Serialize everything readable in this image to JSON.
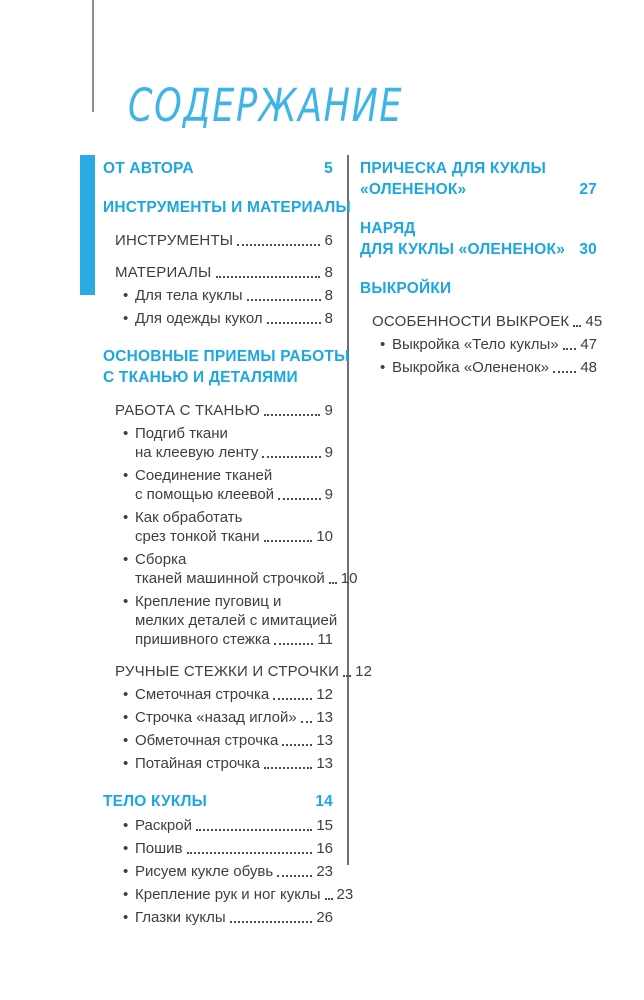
{
  "title": "СОДЕРЖАНИЕ",
  "colors": {
    "accent": "#1da7e0",
    "title": "#3fb4e8",
    "text": "#3e3e3d",
    "accent_bar": "#29abe2",
    "divider": "#6f7072"
  },
  "glyphs": {
    "bullet": "•"
  },
  "columns": {
    "left": [
      {
        "type": "heading",
        "lines": [
          "ОТ АВТОРА"
        ],
        "page": "5"
      },
      {
        "type": "heading",
        "lines": [
          "ИНСТРУМЕНТЫ И МАТЕРИАЛЫ"
        ]
      },
      {
        "type": "caps",
        "lines": [
          "ИНСТРУМЕНТЫ"
        ],
        "page": "6"
      },
      {
        "type": "caps",
        "lines": [
          "МАТЕРИАЛЫ"
        ],
        "page": "8"
      },
      {
        "type": "bullet",
        "lines": [
          "Для тела куклы"
        ],
        "page": "8"
      },
      {
        "type": "bullet",
        "lines": [
          "Для одежды кукол"
        ],
        "page": "8"
      },
      {
        "type": "heading",
        "lines": [
          "ОСНОВНЫЕ ПРИЕМЫ РАБОТЫ",
          "С ТКАНЬЮ И ДЕТАЛЯМИ"
        ]
      },
      {
        "type": "caps",
        "lines": [
          "РАБОТА С ТКАНЬЮ"
        ],
        "page": "9"
      },
      {
        "type": "bullet",
        "lines": [
          "Подгиб ткани",
          "на клеевую ленту"
        ],
        "page": "9"
      },
      {
        "type": "bullet",
        "lines": [
          "Соединение тканей",
          "с помощью клеевой"
        ],
        "page": "9"
      },
      {
        "type": "bullet",
        "lines": [
          "Как обработать",
          "срез тонкой ткани"
        ],
        "page": "10"
      },
      {
        "type": "bullet",
        "lines": [
          "Сборка",
          "тканей машинной строчкой"
        ],
        "page": "10"
      },
      {
        "type": "bullet",
        "lines": [
          "Крепление пуговиц и",
          "мелких деталей с имитацией",
          "пришивного стежка"
        ],
        "page": "11"
      },
      {
        "type": "caps",
        "lines": [
          "РУЧНЫЕ СТЕЖКИ И СТРОЧКИ"
        ],
        "page": "12"
      },
      {
        "type": "bullet",
        "lines": [
          "Сметочная строчка"
        ],
        "page": "12"
      },
      {
        "type": "bullet",
        "lines": [
          "Строчка «назад иглой»"
        ],
        "page": "13"
      },
      {
        "type": "bullet",
        "lines": [
          "Обметочная строчка"
        ],
        "page": "13"
      },
      {
        "type": "bullet",
        "lines": [
          "Потайная строчка"
        ],
        "page": "13"
      },
      {
        "type": "heading",
        "lines": [
          "ТЕЛО КУКЛЫ"
        ],
        "page": "14"
      },
      {
        "type": "bullet",
        "lines": [
          "Раскрой"
        ],
        "page": "15"
      },
      {
        "type": "bullet",
        "lines": [
          "Пошив"
        ],
        "page": "16"
      },
      {
        "type": "bullet",
        "lines": [
          "Рисуем кукле обувь"
        ],
        "page": "23"
      },
      {
        "type": "bullet",
        "lines": [
          "Крепление рук и ног куклы"
        ],
        "page": "23"
      },
      {
        "type": "bullet",
        "lines": [
          "Глазки куклы"
        ],
        "page": "26"
      }
    ],
    "right": [
      {
        "type": "heading",
        "lines": [
          "ПРИЧЕСКА ДЛЯ КУКЛЫ",
          "«ОЛЕНЕНОК»"
        ],
        "page": "27"
      },
      {
        "type": "heading",
        "lines": [
          "НАРЯД",
          "ДЛЯ КУКЛЫ «ОЛЕНЕНОК»"
        ],
        "page": "30"
      },
      {
        "type": "heading",
        "lines": [
          "ВЫКРОЙКИ"
        ]
      },
      {
        "type": "caps",
        "lines": [
          "ОСОБЕННОСТИ ВЫКРОЕК"
        ],
        "page": "45"
      },
      {
        "type": "bullet",
        "lines": [
          "Выкройка «Тело куклы»"
        ],
        "page": "47"
      },
      {
        "type": "bullet",
        "lines": [
          "Выкройка «Олененок»"
        ],
        "page": "48"
      }
    ]
  }
}
